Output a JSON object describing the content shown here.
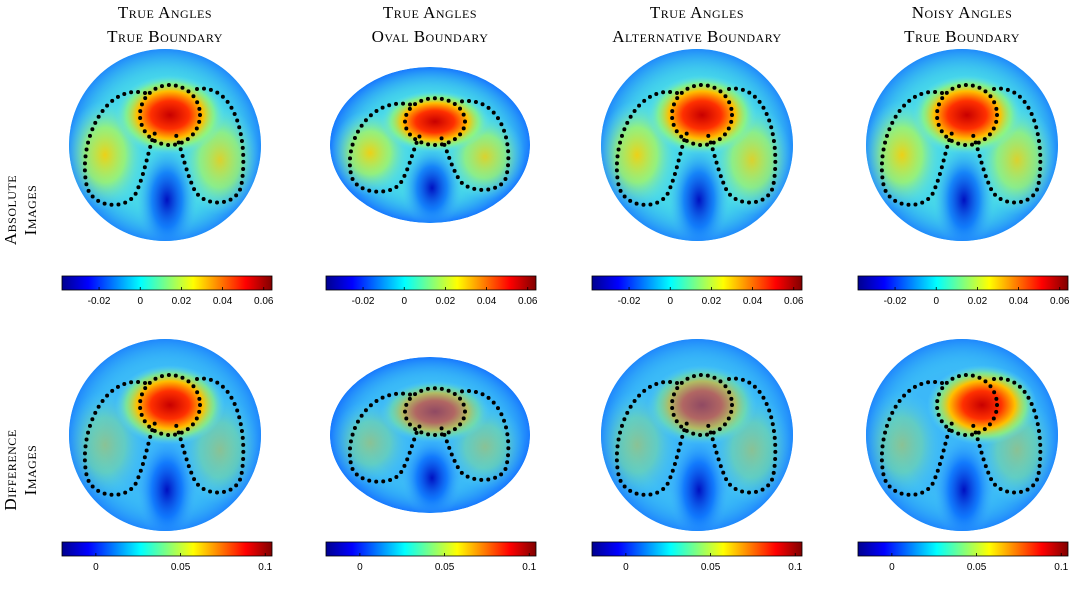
{
  "columns": [
    {
      "line1": "True Angles",
      "line2": "True Boundary"
    },
    {
      "line1": "True Angles",
      "line2": "Oval Boundary"
    },
    {
      "line1": "True Angles",
      "line2": "Alternative Boundary"
    },
    {
      "line1": "Noisy Angles",
      "line2": "True Boundary"
    }
  ],
  "rows": [
    {
      "line1": "Absolute",
      "line2": "Images",
      "colorbar": {
        "lim": [
          -0.038,
          0.064
        ],
        "ticks": [
          -0.02,
          0,
          0.02,
          0.04,
          0.06
        ]
      }
    },
    {
      "line1": "Difference",
      "line2": "Images",
      "colorbar": {
        "lim": [
          -0.02,
          0.104
        ],
        "ticks": [
          0,
          0.05,
          0.1
        ]
      }
    }
  ]
}
